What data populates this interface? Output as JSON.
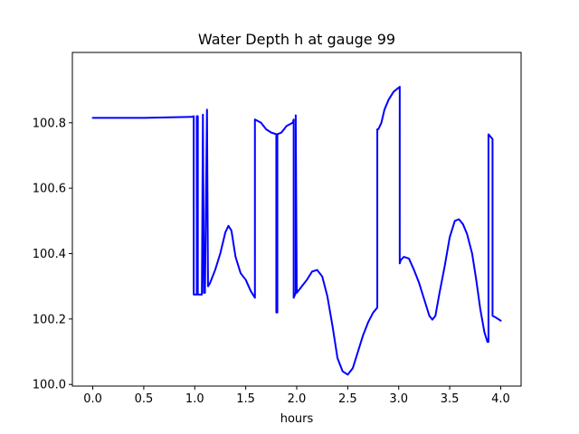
{
  "chart_data": {
    "type": "line",
    "title": "Water Depth h at gauge 99",
    "xlabel": "hours",
    "ylabel": "",
    "xlim": [
      -0.2,
      4.2
    ],
    "ylim": [
      99.995,
      101.015
    ],
    "x_ticks": [
      0.0,
      0.5,
      1.0,
      1.5,
      2.0,
      2.5,
      3.0,
      3.5,
      4.0
    ],
    "x_tick_labels": [
      "0.0",
      "0.5",
      "1.0",
      "1.5",
      "2.0",
      "2.5",
      "3.0",
      "3.5",
      "4.0"
    ],
    "y_ticks": [
      100.0,
      100.2,
      100.4,
      100.6,
      100.8
    ],
    "y_tick_labels": [
      "100.0",
      "100.2",
      "100.4",
      "100.6",
      "100.8"
    ],
    "grid": false,
    "series": [
      {
        "color": "#0000ff",
        "x": [
          0.0,
          0.5,
          0.97,
          0.99,
          0.99,
          1.02,
          1.02,
          1.03,
          1.03,
          1.07,
          1.08,
          1.08,
          1.09,
          1.1,
          1.12,
          1.12,
          1.13,
          1.15,
          1.2,
          1.25,
          1.3,
          1.33,
          1.36,
          1.4,
          1.45,
          1.5,
          1.55,
          1.59,
          1.59,
          1.65,
          1.7,
          1.75,
          1.8,
          1.8,
          1.81,
          1.81,
          1.85,
          1.9,
          1.96,
          1.97,
          1.97,
          1.99,
          1.99,
          2.0,
          2.05,
          2.1,
          2.15,
          2.2,
          2.25,
          2.3,
          2.35,
          2.4,
          2.45,
          2.5,
          2.55,
          2.6,
          2.65,
          2.7,
          2.75,
          2.79,
          2.79,
          2.8,
          2.83,
          2.86,
          2.9,
          2.95,
          3.01,
          3.01,
          3.02,
          3.05,
          3.1,
          3.15,
          3.2,
          3.25,
          3.3,
          3.33,
          3.36,
          3.4,
          3.45,
          3.5,
          3.55,
          3.59,
          3.63,
          3.67,
          3.72,
          3.76,
          3.8,
          3.84,
          3.87,
          3.88,
          3.88,
          3.92,
          3.92,
          3.95,
          4.0
        ],
        "y": [
          100.815,
          100.815,
          100.818,
          100.82,
          100.275,
          100.275,
          100.82,
          100.82,
          100.275,
          100.275,
          100.825,
          100.825,
          100.28,
          100.28,
          100.84,
          100.84,
          100.3,
          100.31,
          100.35,
          100.4,
          100.465,
          100.485,
          100.47,
          100.39,
          100.34,
          100.32,
          100.285,
          100.265,
          100.81,
          100.8,
          100.78,
          100.77,
          100.765,
          100.22,
          100.22,
          100.765,
          100.77,
          100.79,
          100.8,
          100.81,
          100.265,
          100.28,
          100.823,
          100.28,
          100.3,
          100.32,
          100.345,
          100.35,
          100.33,
          100.27,
          100.18,
          100.08,
          100.04,
          100.03,
          100.05,
          100.1,
          100.15,
          100.19,
          100.22,
          100.235,
          100.78,
          100.78,
          100.8,
          100.84,
          100.87,
          100.895,
          100.91,
          100.37,
          100.38,
          100.39,
          100.385,
          100.35,
          100.31,
          100.26,
          100.21,
          100.198,
          100.21,
          100.28,
          100.36,
          100.45,
          100.5,
          100.505,
          100.49,
          100.46,
          100.4,
          100.32,
          100.23,
          100.16,
          100.13,
          100.13,
          100.765,
          100.75,
          100.21,
          100.205,
          100.195
        ]
      }
    ]
  }
}
